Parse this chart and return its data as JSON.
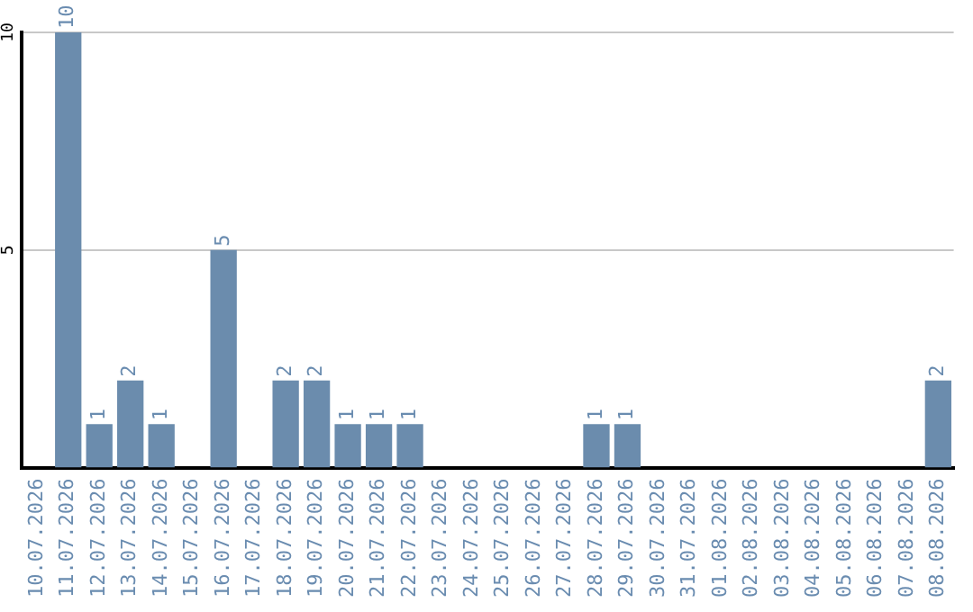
{
  "chart_data": {
    "type": "bar",
    "categories": [
      "10.07.2026",
      "11.07.2026",
      "12.07.2026",
      "13.07.2026",
      "14.07.2026",
      "15.07.2026",
      "16.07.2026",
      "17.07.2026",
      "18.07.2026",
      "19.07.2026",
      "20.07.2026",
      "21.07.2026",
      "22.07.2026",
      "23.07.2026",
      "24.07.2026",
      "25.07.2026",
      "26.07.2026",
      "27.07.2026",
      "28.07.2026",
      "29.07.2026",
      "30.07.2026",
      "31.07.2026",
      "01.08.2026",
      "02.08.2026",
      "03.08.2026",
      "04.08.2026",
      "05.08.2026",
      "06.08.2026",
      "07.08.2026",
      "08.08.2026"
    ],
    "values": [
      0,
      10,
      1,
      2,
      1,
      0,
      5,
      0,
      2,
      2,
      1,
      1,
      1,
      0,
      0,
      0,
      0,
      0,
      1,
      1,
      0,
      0,
      0,
      0,
      0,
      0,
      0,
      0,
      0,
      2
    ],
    "value_labels": [
      null,
      "10",
      "1",
      "2",
      "1",
      null,
      "5",
      null,
      "2",
      "2",
      "1",
      "1",
      "1",
      null,
      null,
      null,
      null,
      null,
      "1",
      "1",
      null,
      null,
      null,
      null,
      null,
      null,
      null,
      null,
      null,
      "2"
    ],
    "color": "#6b8cad",
    "ylim": [
      0,
      10
    ],
    "yticks": [
      5,
      10
    ],
    "grid": "y",
    "legend": false
  }
}
